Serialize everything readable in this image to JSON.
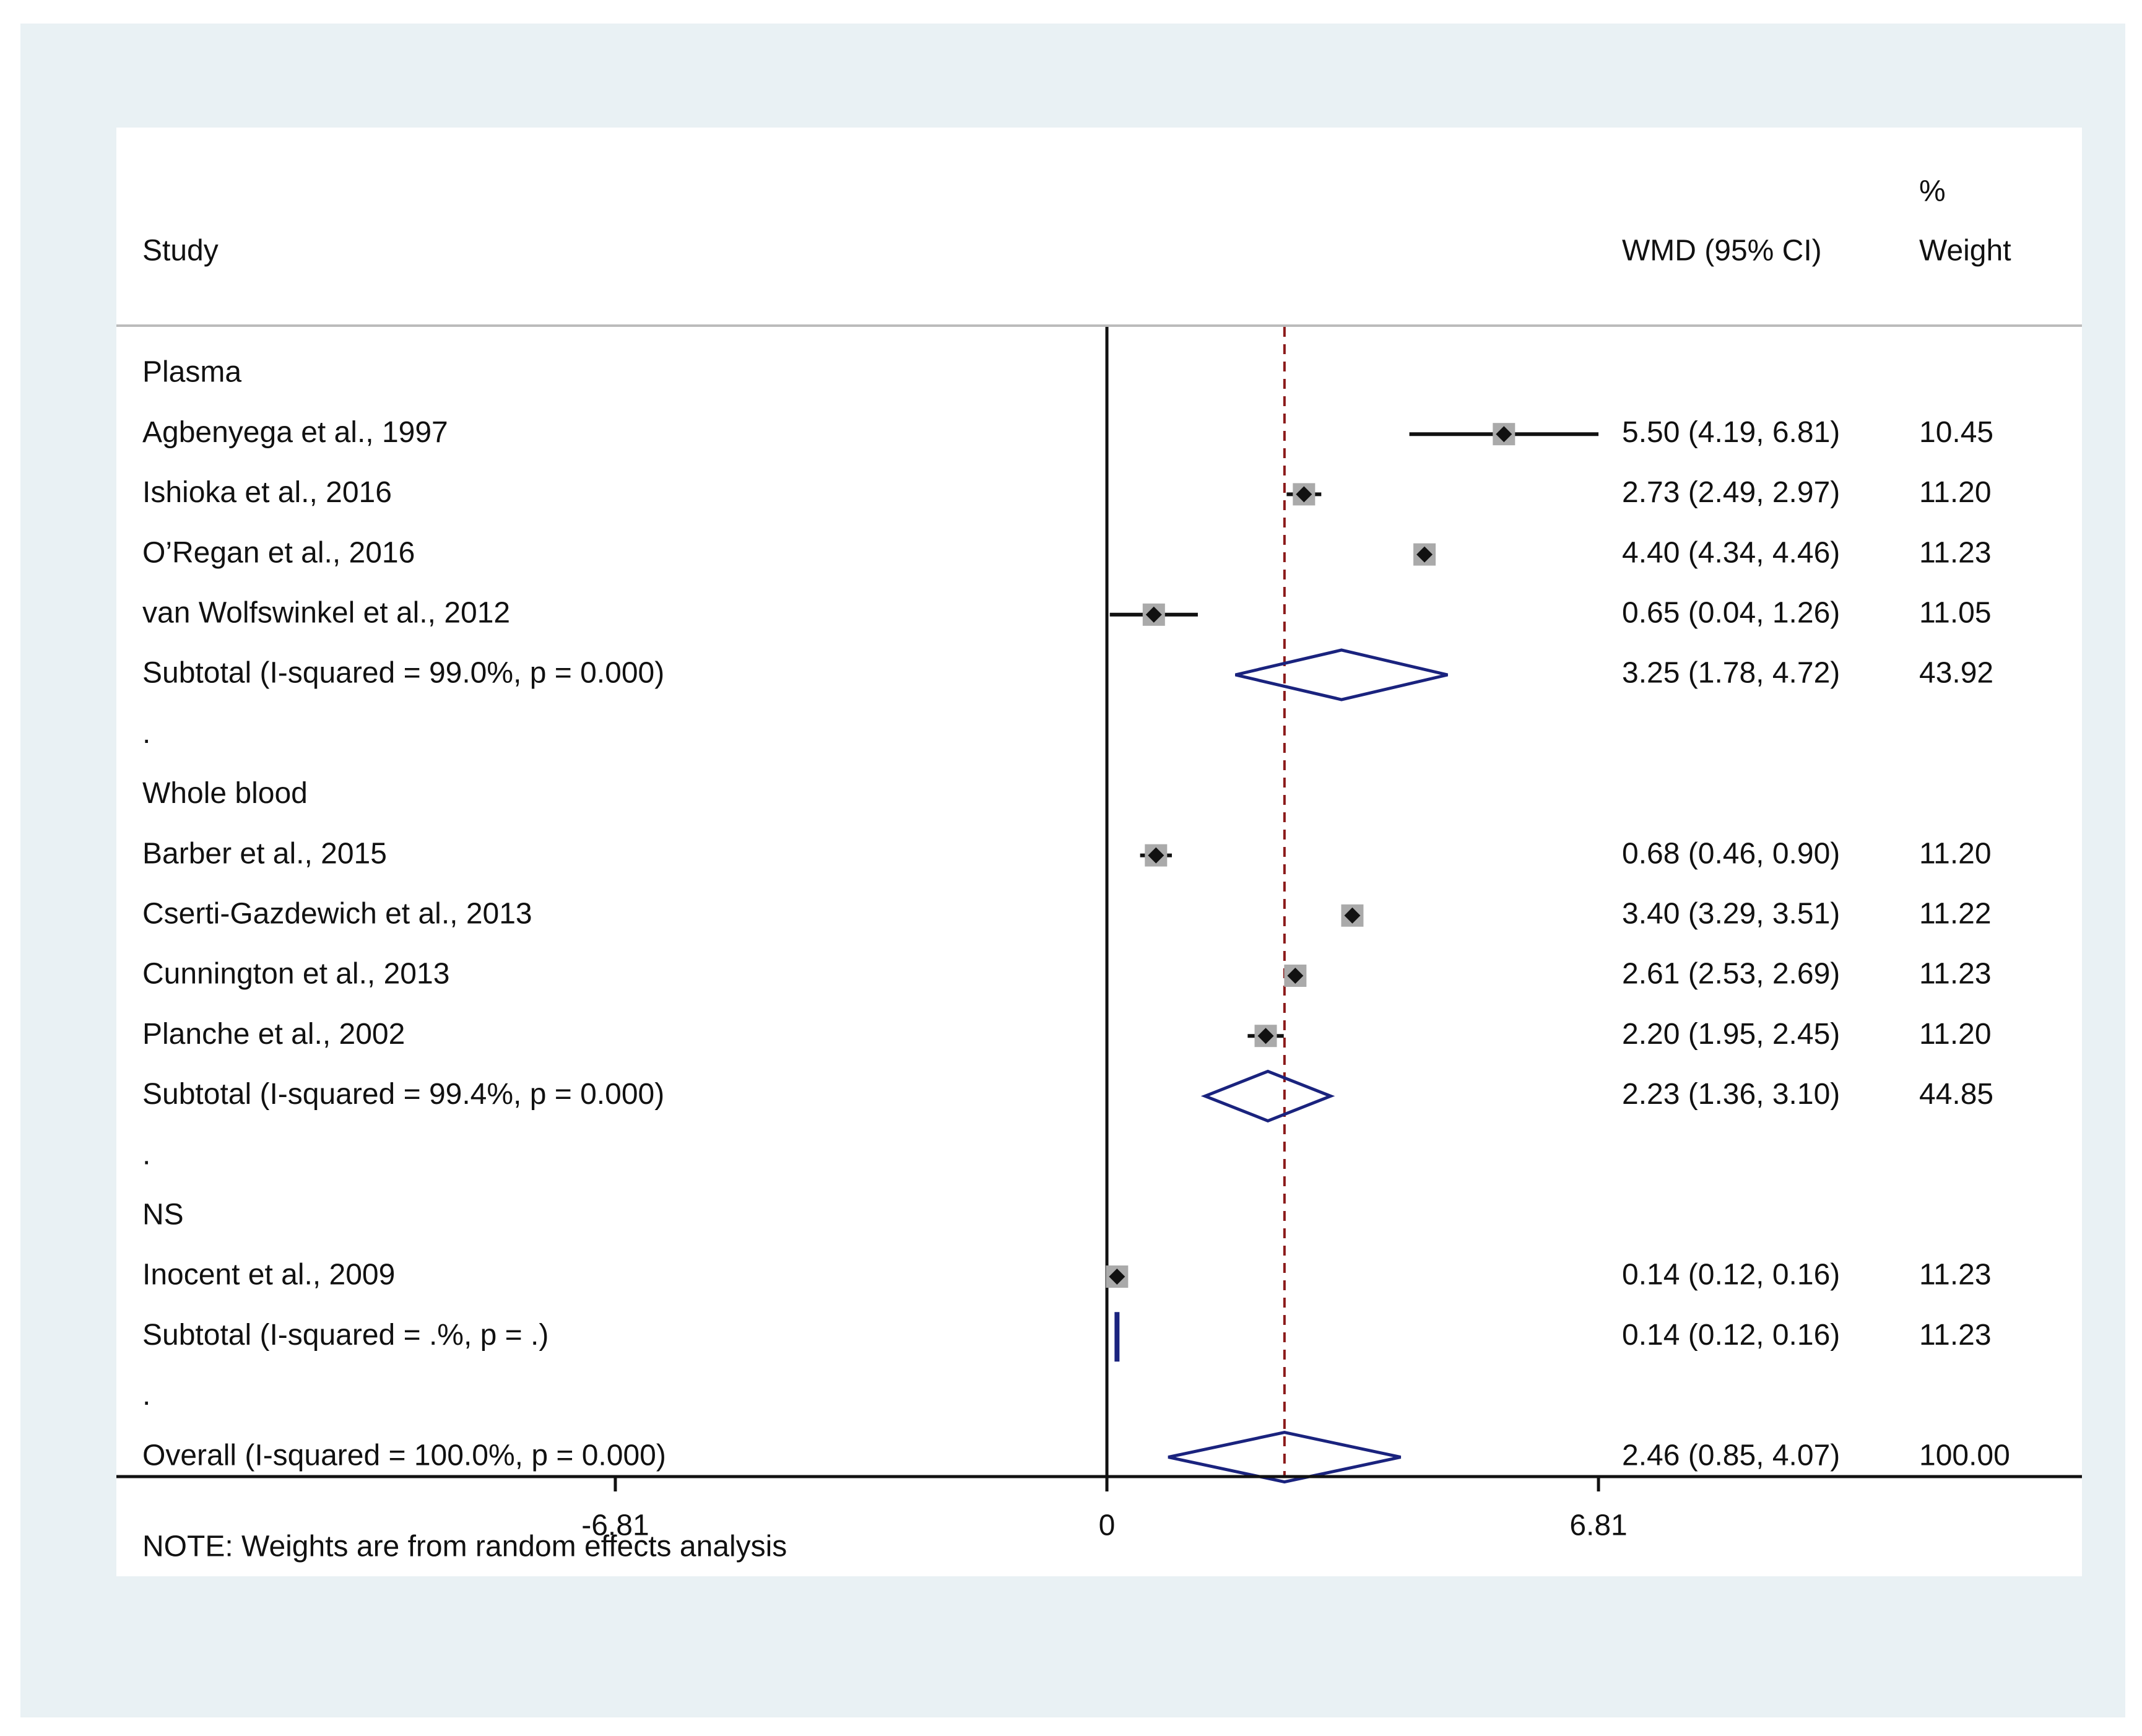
{
  "chart_data": {
    "type": "forest",
    "headers": {
      "study": "Study",
      "effect": "WMD (95% CI)",
      "weight_top": "%",
      "weight_bottom": "Weight"
    },
    "groups": [
      {
        "name": "Plasma",
        "studies": [
          {
            "study": "Agbenyega et al., 1997",
            "est": 5.5,
            "lo": 4.19,
            "hi": 6.81,
            "ci_text": "5.50 (4.19, 6.81)",
            "weight": "10.45"
          },
          {
            "study": "Ishioka et al., 2016",
            "est": 2.73,
            "lo": 2.49,
            "hi": 2.97,
            "ci_text": "2.73 (2.49, 2.97)",
            "weight": "11.20"
          },
          {
            "study": "O’Regan et al., 2016",
            "est": 4.4,
            "lo": 4.34,
            "hi": 4.46,
            "ci_text": "4.40 (4.34, 4.46)",
            "weight": "11.23"
          },
          {
            "study": "van Wolfswinkel et al., 2012",
            "est": 0.65,
            "lo": 0.04,
            "hi": 1.26,
            "ci_text": "0.65 (0.04, 1.26)",
            "weight": "11.05"
          }
        ],
        "subtotal": {
          "label": "Subtotal  (I-squared = 99.0%, p = 0.000)",
          "est": 3.25,
          "lo": 1.78,
          "hi": 4.72,
          "ci_text": "3.25 (1.78, 4.72)",
          "weight": "43.92"
        }
      },
      {
        "name": "Whole blood",
        "studies": [
          {
            "study": "Barber et al., 2015",
            "est": 0.68,
            "lo": 0.46,
            "hi": 0.9,
            "ci_text": "0.68 (0.46, 0.90)",
            "weight": "11.20"
          },
          {
            "study": "Cserti-Gazdewich et al., 2013",
            "est": 3.4,
            "lo": 3.29,
            "hi": 3.51,
            "ci_text": "3.40 (3.29, 3.51)",
            "weight": "11.22"
          },
          {
            "study": "Cunnington et al., 2013",
            "est": 2.61,
            "lo": 2.53,
            "hi": 2.69,
            "ci_text": "2.61 (2.53, 2.69)",
            "weight": "11.23"
          },
          {
            "study": "Planche et al., 2002",
            "est": 2.2,
            "lo": 1.95,
            "hi": 2.45,
            "ci_text": "2.20 (1.95, 2.45)",
            "weight": "11.20"
          }
        ],
        "subtotal": {
          "label": "Subtotal  (I-squared = 99.4%, p = 0.000)",
          "est": 2.23,
          "lo": 1.36,
          "hi": 3.1,
          "ci_text": "2.23 (1.36, 3.10)",
          "weight": "44.85"
        }
      },
      {
        "name": "NS",
        "studies": [
          {
            "study": "Inocent et al., 2009",
            "est": 0.14,
            "lo": 0.12,
            "hi": 0.16,
            "ci_text": "0.14 (0.12, 0.16)",
            "weight": "11.23"
          }
        ],
        "subtotal": {
          "label": "Subtotal  (I-squared = .%, p = .)",
          "est": 0.14,
          "lo": 0.12,
          "hi": 0.16,
          "ci_text": "0.14 (0.12, 0.16)",
          "weight": "11.23"
        }
      }
    ],
    "separator": ".",
    "overall": {
      "label": "Overall  (I-squared = 100.0%, p = 0.000)",
      "est": 2.46,
      "lo": 0.85,
      "hi": 4.07,
      "ci_text": "2.46 (0.85, 4.07)",
      "weight": "100.00"
    },
    "note": "NOTE: Weights are from random effects analysis",
    "x_ticks": [
      {
        "value": -6.81,
        "label": "-6.81"
      },
      {
        "value": 0,
        "label": "0"
      },
      {
        "value": 6.81,
        "label": "6.81"
      }
    ],
    "xlim": [
      -13.62,
      13.62
    ],
    "null_line": 0,
    "overall_line": 2.46,
    "colors": {
      "frame": "#e9f1f4",
      "diamond": "#1a237e",
      "overall_line": "#8b1a1a",
      "box": "#aaaaaa",
      "text": "#111111"
    }
  }
}
